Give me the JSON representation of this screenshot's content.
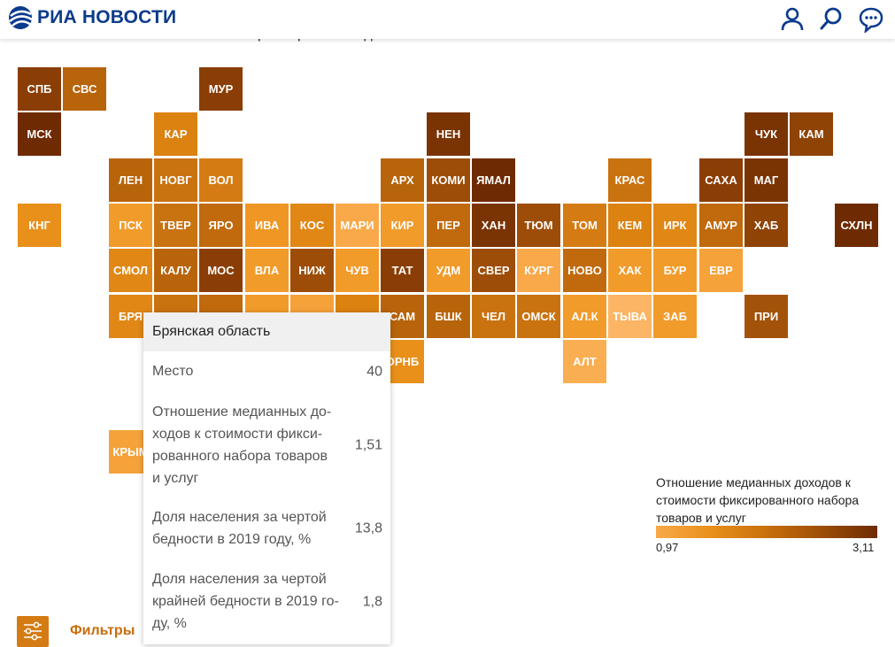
{
  "header": {
    "logo_text": "РИА НОВОСТИ",
    "icons": [
      "user-icon",
      "search-icon",
      "chat-icon"
    ]
  },
  "intro_text_fragment": "живет за чертой крайней бедности.",
  "map": {
    "legend_title": "Отношение медианных доходов к стоимости фиксированного набора товаров и услуг",
    "legend_min": "0,97",
    "legend_max": "3,11",
    "legend_colors": [
      "#f9a94a",
      "#6e2b01"
    ],
    "tiles": [
      {
        "label": "СПБ",
        "color": "#8a3e05"
      },
      {
        "label": "СВС",
        "color": "#b8640b"
      },
      {
        "label": "МУР",
        "color": "#8a3e05"
      },
      {
        "label": "МСК",
        "color": "#6e2b01"
      },
      {
        "label": "КАР",
        "color": "#db8211"
      },
      {
        "label": "НЕН",
        "color": "#7a3403"
      },
      {
        "label": "ЧУК",
        "color": "#7a3403"
      },
      {
        "label": "КАМ",
        "color": "#8f4305"
      },
      {
        "label": "ЛЕН",
        "color": "#b8640b"
      },
      {
        "label": "НОВГ",
        "color": "#c97210"
      },
      {
        "label": "ВОЛ",
        "color": "#d47c13"
      },
      {
        "label": "АРХ",
        "color": "#b8640b"
      },
      {
        "label": "КОМИ",
        "color": "#9d4d07"
      },
      {
        "label": "ЯМАЛ",
        "color": "#6e2b01"
      },
      {
        "label": "КРАС",
        "color": "#c97210"
      },
      {
        "label": "САХА",
        "color": "#8a3e05"
      },
      {
        "label": "МАГ",
        "color": "#7a3403"
      },
      {
        "label": "КНГ",
        "color": "#e8901a"
      },
      {
        "label": "ПСК",
        "color": "#f19b2a"
      },
      {
        "label": "ТВЕР",
        "color": "#c97210"
      },
      {
        "label": "ЯРО",
        "color": "#c06a0d"
      },
      {
        "label": "ИВА",
        "color": "#ef9624"
      },
      {
        "label": "КОС",
        "color": "#e08716"
      },
      {
        "label": "МАРИ",
        "color": "#f9a94a"
      },
      {
        "label": "КИР",
        "color": "#f19b2a"
      },
      {
        "label": "ПЕР",
        "color": "#c06a0d"
      },
      {
        "label": "ХАН",
        "color": "#7a3403"
      },
      {
        "label": "ТЮМ",
        "color": "#9d4d07"
      },
      {
        "label": "ТОМ",
        "color": "#d47c13"
      },
      {
        "label": "КЕМ",
        "color": "#db8211"
      },
      {
        "label": "ИРК",
        "color": "#e08716"
      },
      {
        "label": "АМУР",
        "color": "#c06a0d"
      },
      {
        "label": "ХАБ",
        "color": "#8f4305"
      },
      {
        "label": "СХЛН",
        "color": "#6e2b01"
      },
      {
        "label": "СМОЛ",
        "color": "#e08716"
      },
      {
        "label": "КАЛУ",
        "color": "#b8640b"
      },
      {
        "label": "МОС",
        "color": "#8a3e05"
      },
      {
        "label": "ВЛА",
        "color": "#f19b2a"
      },
      {
        "label": "НИЖ",
        "color": "#9d4d07"
      },
      {
        "label": "ЧУВ",
        "color": "#f19b2a"
      },
      {
        "label": "ТАТ",
        "color": "#8a3e05"
      },
      {
        "label": "УДМ",
        "color": "#f19b2a"
      },
      {
        "label": "СВЕР",
        "color": "#9d4d07"
      },
      {
        "label": "КУРГ",
        "color": "#f9a94a"
      },
      {
        "label": "НОВО",
        "color": "#c06a0d"
      },
      {
        "label": "ХАК",
        "color": "#f19b2a"
      },
      {
        "label": "БУР",
        "color": "#f19b2a"
      },
      {
        "label": "ЕВР",
        "color": "#f5a23a"
      },
      {
        "label": "БРЯ",
        "color": "#e08716"
      },
      {
        "label": "САМ",
        "color": "#b8640b"
      },
      {
        "label": "БШК",
        "color": "#b8640b"
      },
      {
        "label": "ЧЕЛ",
        "color": "#c97210"
      },
      {
        "label": "ОМСК",
        "color": "#c97210"
      },
      {
        "label": "АЛ.К",
        "color": "#f19b2a"
      },
      {
        "label": "ТЫВА",
        "color": "#fbb564"
      },
      {
        "label": "ЗАБ",
        "color": "#f19b2a"
      },
      {
        "label": "ПРИ",
        "color": "#a35209"
      },
      {
        "label": "ОРНБ",
        "color": "#e8901a"
      },
      {
        "label": "АЛТ",
        "color": "#f9ae52"
      },
      {
        "label": "КРЫМ",
        "color": "#f5a23a"
      }
    ],
    "hidden_tiles": [
      {
        "color": "#c97210"
      },
      {
        "color": "#c06a0d"
      },
      {
        "color": "#f19b2a"
      },
      {
        "color": "#f5a23a"
      },
      {
        "color": "#db8211"
      }
    ]
  },
  "tooltip": {
    "region": "Брянская область",
    "rows": [
      {
        "label": "Место",
        "value": "40"
      },
      {
        "label": "Отношение медианных до-\nходов к стоимости фикси-\nрованного набора товаров\nи услуг",
        "value": "1,51"
      },
      {
        "label": "Доля населения за чертой\nбедности в 2019 году, %",
        "value": "13,8"
      },
      {
        "label": "Доля населения за чертой\nкрайней бедности в 2019 го-\nду, %",
        "value": "1,8"
      }
    ]
  },
  "footer": {
    "filter_label": "Фильтры"
  }
}
